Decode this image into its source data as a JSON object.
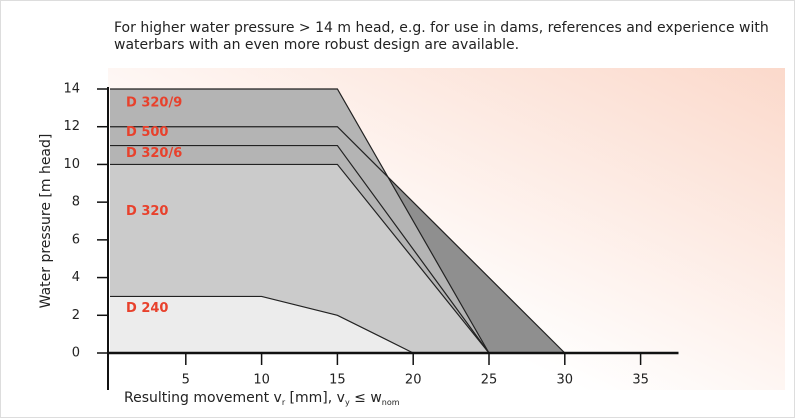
{
  "chart_data": {
    "type": "area",
    "title": [
      "For higher water pressure > 14 m head, e.g. for use in dams, references and experience with",
      "waterbars with an even more robust design are available."
    ],
    "ylabel": "Water pressure [m head]",
    "xlabel": [
      "Resulting movement v",
      "r",
      " [mm], v",
      "y",
      " ≤ w",
      "nom"
    ],
    "xlim": [
      0,
      37.5
    ],
    "ylim": [
      0,
      14
    ],
    "xticks": [
      5,
      10,
      15,
      20,
      25,
      30,
      35
    ],
    "yticks": [
      0,
      2,
      4,
      6,
      8,
      10,
      12,
      14
    ],
    "series": [
      {
        "name": "D 500",
        "color": "#8f8f8f",
        "x": [
          0,
          15,
          30
        ],
        "values": [
          12,
          12,
          0
        ]
      },
      {
        "name": "D 320/9",
        "color": "#b4b4b4",
        "x": [
          0,
          15,
          25
        ],
        "values": [
          14,
          14,
          0
        ]
      },
      {
        "name": "D 320/6",
        "color": "#b4b4b4",
        "x": [
          0,
          15,
          25
        ],
        "values": [
          11,
          11,
          0
        ]
      },
      {
        "name": "D 320",
        "color": "#cbcbcb",
        "x": [
          0,
          15,
          25
        ],
        "values": [
          10,
          10,
          0
        ]
      },
      {
        "name": "D 240",
        "color": "#ececec",
        "x": [
          0,
          10,
          15,
          20
        ],
        "values": [
          3,
          3,
          2,
          0
        ]
      }
    ]
  }
}
